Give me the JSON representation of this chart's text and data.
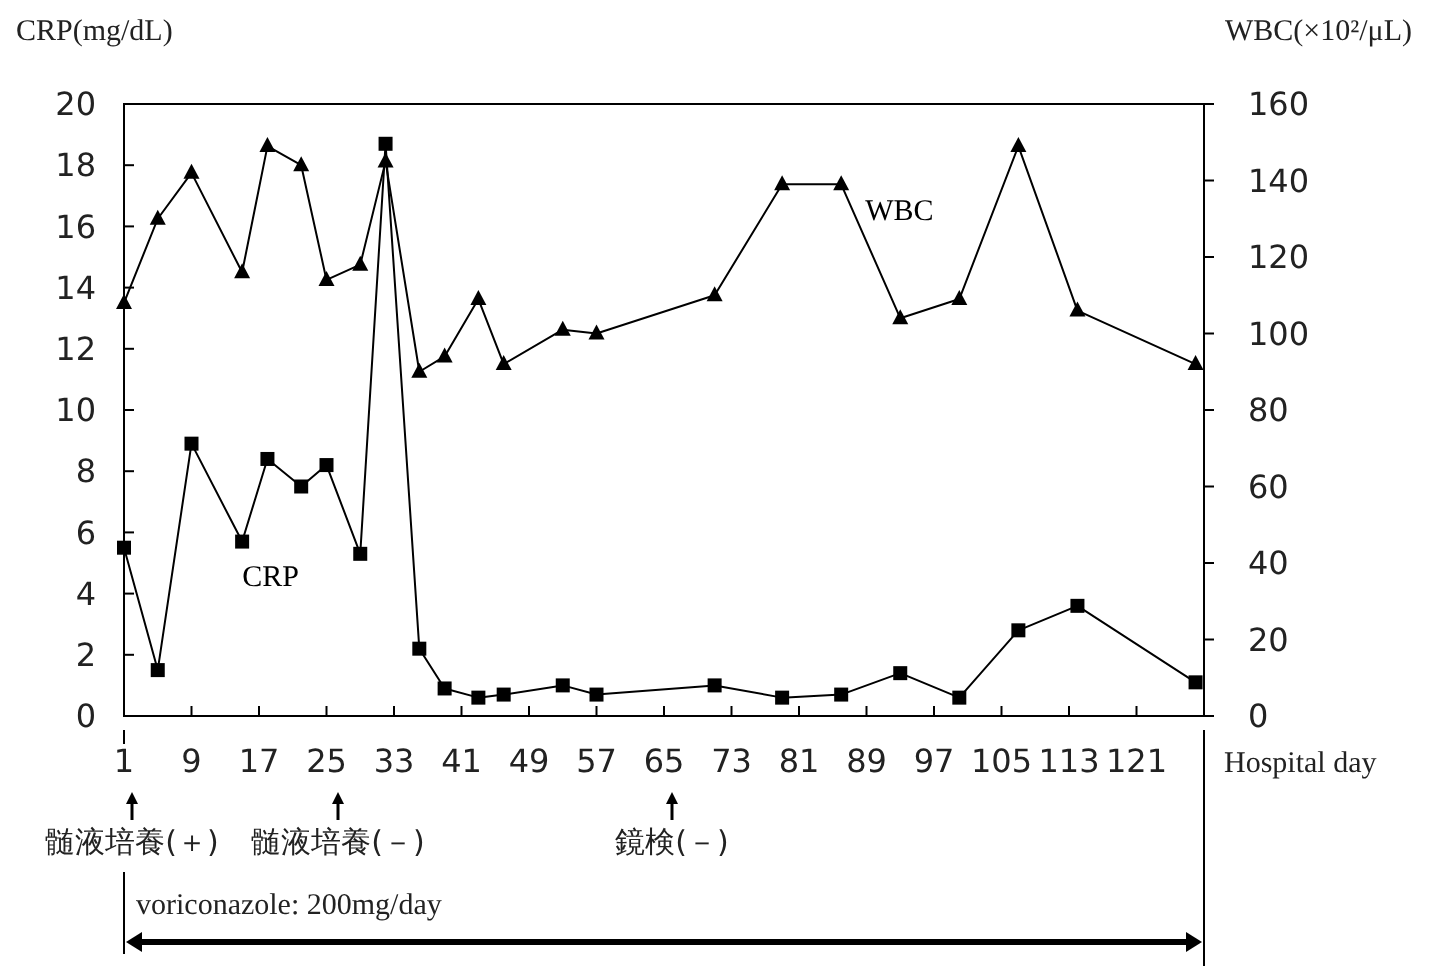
{
  "chart_data": {
    "type": "line",
    "ylabel": "CRP(mg/dL)",
    "y2label": "WBC(×10²/μL)",
    "xlabel": "Hospital day",
    "x": [
      1,
      5,
      9,
      15,
      18,
      22,
      25,
      29,
      32,
      36,
      39,
      43,
      46,
      53,
      57,
      71,
      79,
      86,
      93,
      100,
      107,
      114,
      128
    ],
    "series": [
      {
        "name": "CRP",
        "color": "#000000",
        "marker": "square",
        "values": [
          5.5,
          1.5,
          8.9,
          5.7,
          8.4,
          7.5,
          8.2,
          5.3,
          18.7,
          2.2,
          0.9,
          0.6,
          0.7,
          1.0,
          0.7,
          1.0,
          0.6,
          0.7,
          1.4,
          0.6,
          2.8,
          3.6,
          1.1
        ]
      },
      {
        "name": "WBC",
        "color": "#000000",
        "marker": "triangle",
        "axis": "y2",
        "values": [
          108,
          130,
          142,
          116,
          149,
          144,
          114,
          118,
          145,
          90,
          94,
          109,
          92,
          101,
          100,
          110,
          139,
          139,
          104,
          109,
          149,
          106,
          92
        ]
      }
    ],
    "xlim": [
      1,
      129
    ],
    "xticks": [
      1,
      9,
      17,
      25,
      33,
      41,
      49,
      57,
      65,
      73,
      81,
      89,
      97,
      105,
      113,
      121
    ],
    "ylim": [
      0,
      20
    ],
    "yticks": [
      0,
      2,
      4,
      6,
      8,
      10,
      12,
      14,
      16,
      18,
      20
    ],
    "y2lim": [
      0,
      160
    ],
    "y2ticks": [
      0,
      20,
      40,
      60,
      80,
      100,
      120,
      140,
      160
    ],
    "grid": false,
    "annotations": [
      "髄液培養(＋)",
      "髄液培養(－)",
      "鏡検(－)",
      "voriconazole: 200mg/day"
    ]
  }
}
